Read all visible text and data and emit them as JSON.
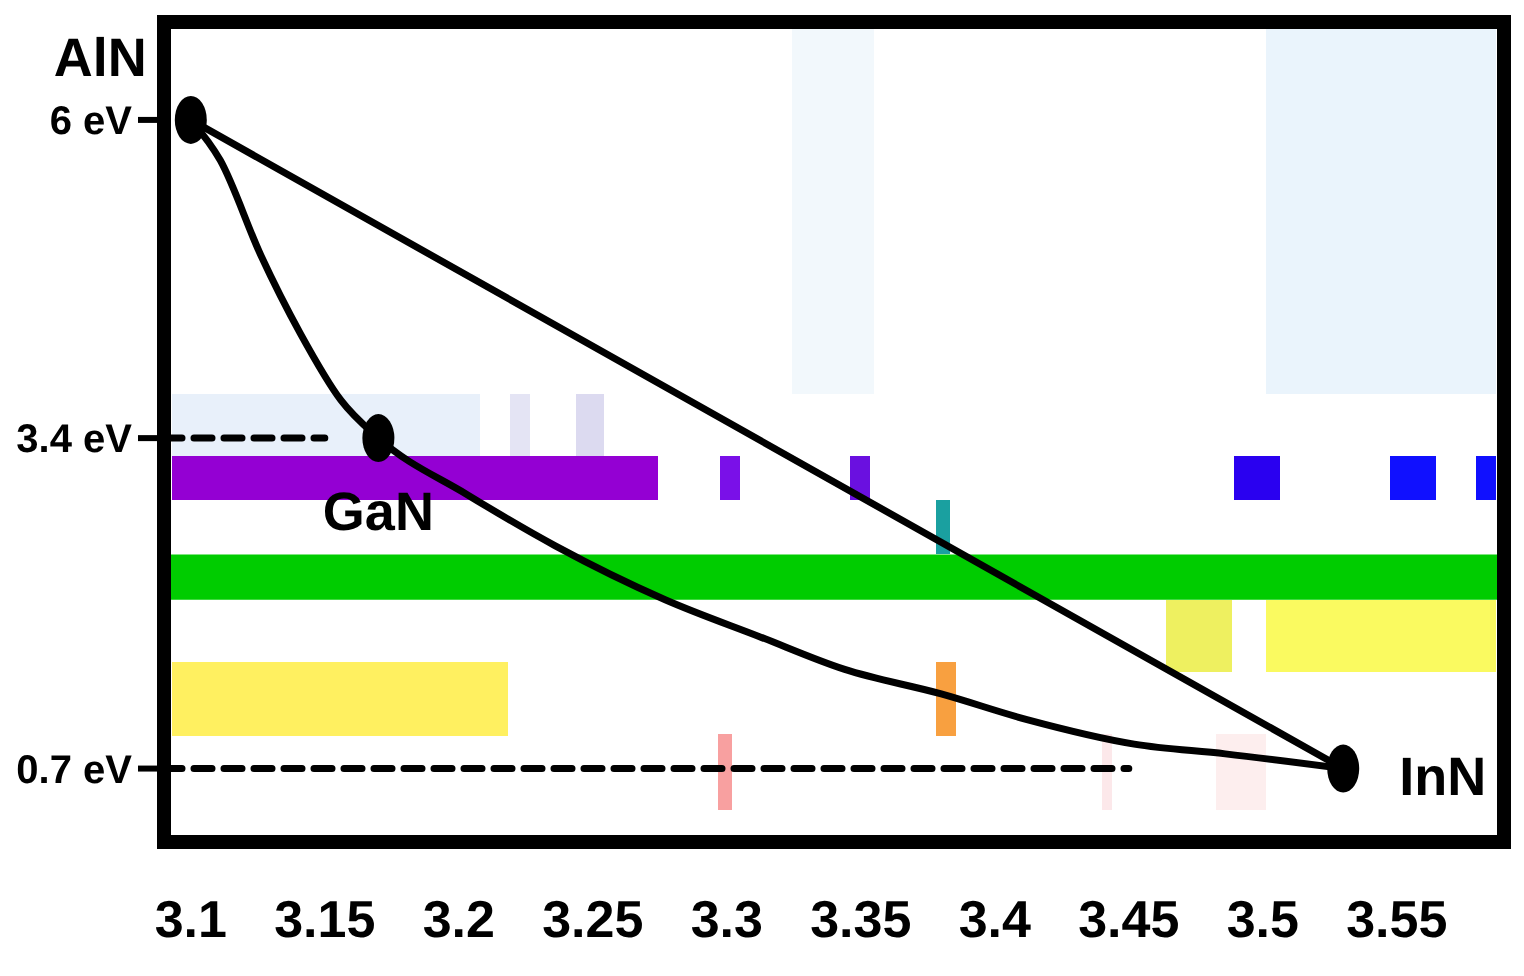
{
  "chart_data": {
    "type": "line",
    "xlim": [
      3.09,
      3.59
    ],
    "xticks": [
      3.1,
      3.15,
      3.2,
      3.25,
      3.3,
      3.35,
      3.4,
      3.45,
      3.5,
      3.55
    ],
    "ylim": [
      0.1,
      6.8
    ],
    "yticks": [
      {
        "value": 0.7,
        "label": "0.7 eV"
      },
      {
        "value": 3.4,
        "label": "3.4 eV"
      },
      {
        "value": 6,
        "label": "6 eV"
      }
    ],
    "series": [
      {
        "color": "#000000",
        "x": [
          3.1,
          3.53
        ],
        "values": [
          6,
          0.7
        ]
      },
      {
        "color": "#000000",
        "x": [
          3.1,
          3.111,
          3.126,
          3.141,
          3.156,
          3.17,
          3.203,
          3.236,
          3.277,
          3.312,
          3.344,
          3.38,
          3.412,
          3.452,
          3.486,
          3.53
        ],
        "values": [
          6,
          5.67,
          4.9,
          4.25,
          3.71,
          3.4,
          2.94,
          2.52,
          2.08,
          1.78,
          1.51,
          1.31,
          1.1,
          0.9,
          0.82,
          0.7
        ]
      },
      {
        "color": "#000000",
        "line_style": "dashed",
        "x": [
          3.09,
          3.15
        ],
        "values": [
          3.4,
          3.4
        ]
      },
      {
        "color": "#000000",
        "line_style": "dashed",
        "x": [
          3.09,
          3.45
        ],
        "values": [
          0.7,
          0.7
        ]
      },
      {
        "type": "scatter",
        "color": "#000000",
        "marker": "circle",
        "x": [
          3.1,
          3.17,
          3.53
        ],
        "values": [
          6,
          3.4,
          0.7
        ]
      }
    ],
    "bands": [
      {
        "axis": "y",
        "from": 2.08,
        "to": 2.45,
        "color": "#00cc00"
      }
    ],
    "annotations": [
      {
        "text": "AlN",
        "x": 3.1,
        "y": 6
      },
      {
        "text": "GaN",
        "x": 3.17,
        "y": 3.4
      },
      {
        "text": "InN",
        "x": 3.53,
        "y": 0.7
      }
    ]
  }
}
